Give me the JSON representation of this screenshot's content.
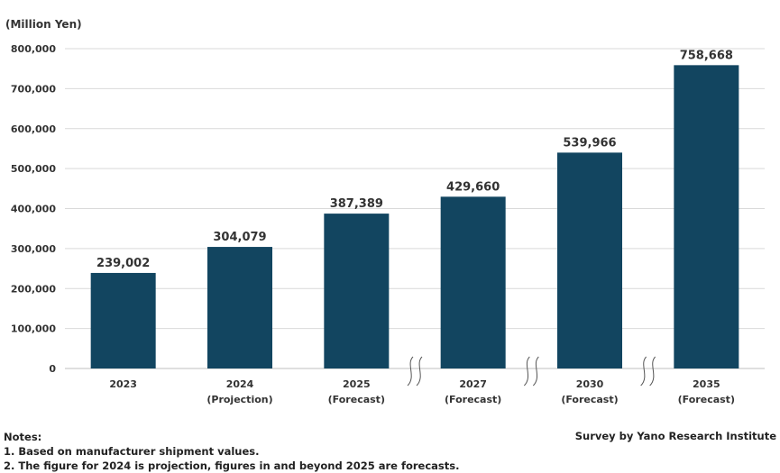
{
  "chart_data": {
    "type": "bar",
    "ylabel": "(Million Yen)",
    "ylim": [
      0,
      800000
    ],
    "yticks": [
      "0",
      "100,000",
      "200,000",
      "300,000",
      "400,000",
      "500,000",
      "600,000",
      "700,000",
      "800,000"
    ],
    "categories": [
      {
        "year": "2023",
        "note": ""
      },
      {
        "year": "2024",
        "note": "(Projection)"
      },
      {
        "year": "2025",
        "note": "(Forecast)"
      },
      {
        "year": "2027",
        "note": "(Forecast)"
      },
      {
        "year": "2030",
        "note": "(Forecast)"
      },
      {
        "year": "2035",
        "note": "(Forecast)"
      }
    ],
    "values": [
      239002,
      304079,
      387389,
      429660,
      539966,
      758668
    ],
    "value_labels": [
      "239,002",
      "304,079",
      "387,389",
      "429,660",
      "539,966",
      "758,668"
    ],
    "axis_breaks_before": [
      3,
      4,
      5
    ],
    "bar_color": "#124560",
    "grid": true
  },
  "notes": {
    "heading": "Notes:",
    "items": [
      "1. Based on manufacturer shipment values.",
      "2. The figure for 2024 is projection, figures in and beyond 2025 are forecasts."
    ]
  },
  "source": "Survey by Yano Research Institute"
}
